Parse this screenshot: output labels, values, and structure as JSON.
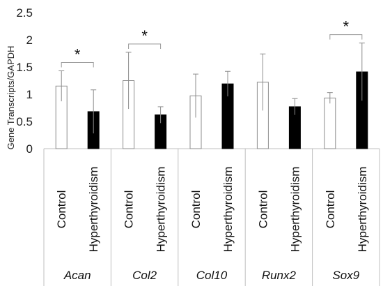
{
  "chart_data": {
    "type": "bar",
    "ylabel": "Gene Transcripts/GAPDH",
    "ylim": [
      0,
      2.5
    ],
    "yticks": [
      "0",
      "0.5",
      "1",
      "1.5",
      "2",
      "2.5"
    ],
    "grid": false,
    "groups": [
      "Acan",
      "Col2",
      "Col10",
      "Runx2",
      "Sox9"
    ],
    "conditions": [
      "Control",
      "Hyperthyroidism"
    ],
    "condition_colors": {
      "Control": "#ffffff",
      "Hyperthyroidism": "#000000"
    },
    "series": [
      {
        "values": [
          1.15,
          1.25,
          0.97,
          1.22,
          0.93
        ],
        "errors": [
          0.28,
          0.52,
          0.4,
          0.52,
          0.1
        ]
      },
      {
        "values": [
          0.68,
          0.62,
          1.19,
          0.77,
          1.41
        ],
        "errors": [
          0.4,
          0.15,
          0.23,
          0.15,
          0.53
        ]
      }
    ],
    "significance": [
      {
        "group": "Acan",
        "label": "*"
      },
      {
        "group": "Col2",
        "label": "*"
      },
      {
        "group": "Sox9",
        "label": "*"
      }
    ]
  }
}
